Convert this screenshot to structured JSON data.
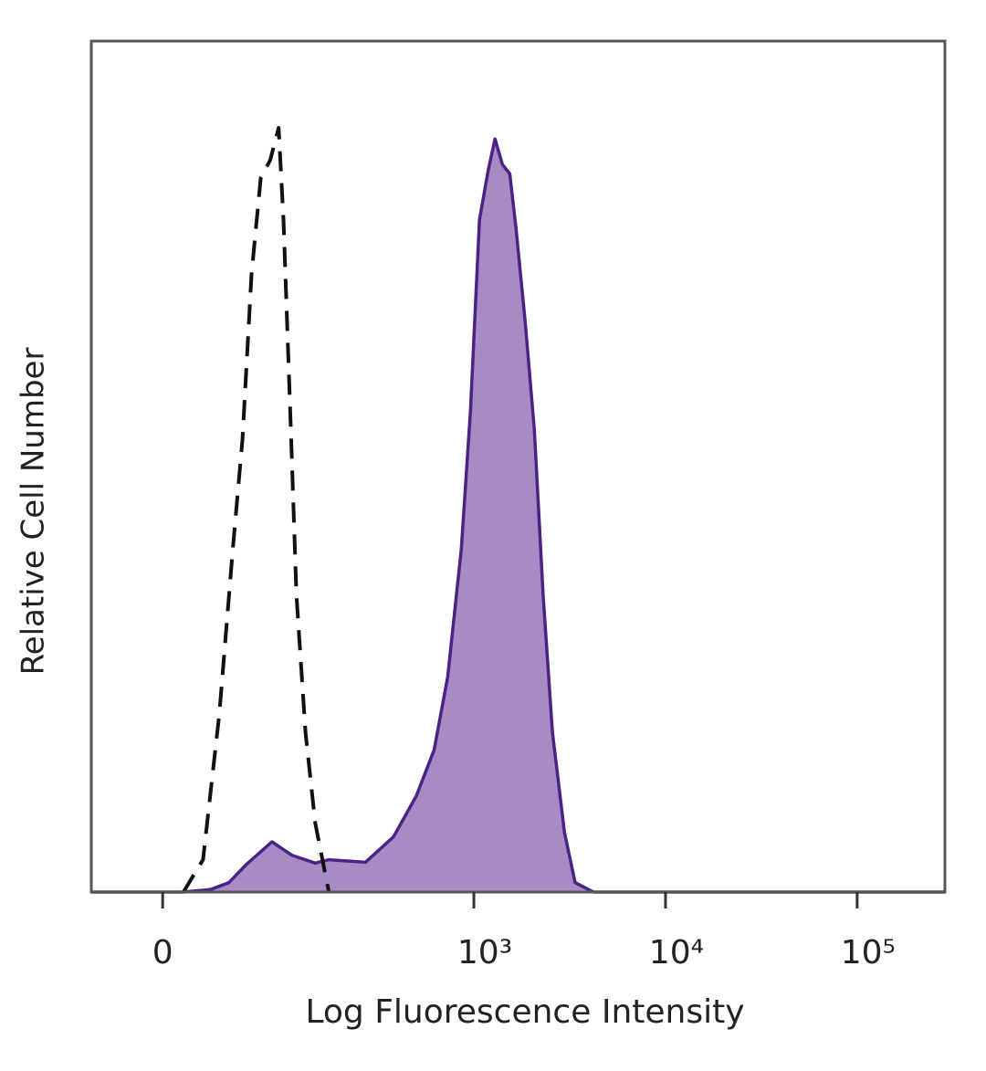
{
  "chart_data": {
    "type": "histogram-overlay",
    "xlabel": "Log Fluorescence Intensity",
    "ylabel": "Relative Cell Number",
    "xscale": "asinh",
    "xlim": [
      -46,
      287000
    ],
    "ylim": [
      0,
      100
    ],
    "xticks": [
      0,
      {
        "value": 1000,
        "label": "10³"
      },
      {
        "value": 10000,
        "label": "10⁴"
      },
      {
        "value": 100000,
        "label": "10⁵"
      }
    ],
    "series": [
      {
        "color": "#4b2386",
        "fill": "#a88bc4",
        "dashed": false,
        "x": [
          -46,
          12,
          29,
          42,
          56,
          82,
          108,
          145,
          172,
          270,
          380,
          500,
          620,
          730,
          860,
          960,
          1070,
          1190,
          1290,
          1410,
          1540,
          1660,
          1850,
          2070,
          2300,
          2570,
          2970,
          3380,
          4210,
          287000
        ],
        "values": [
          0,
          0,
          0.3,
          1.1,
          3.2,
          5.9,
          4.3,
          3.4,
          3.8,
          3.5,
          6.5,
          11.3,
          16.7,
          25.3,
          40.3,
          56.5,
          79.0,
          84.9,
          88.5,
          85.5,
          84.4,
          78.0,
          67.2,
          54.3,
          34.9,
          18.8,
          7.0,
          1.1,
          0,
          0
        ]
      },
      {
        "color": "#111111",
        "fill": "none",
        "dashed": true,
        "x": [
          12,
          24,
          35,
          45,
          53,
          61,
          70,
          80,
          90,
          96,
          105,
          114,
          128,
          145,
          172
        ],
        "values": [
          0,
          3.8,
          21.0,
          40.3,
          53.2,
          72.6,
          83.9,
          86.0,
          89.8,
          79.0,
          56.5,
          34.9,
          18.8,
          8.1,
          0
        ]
      }
    ]
  }
}
